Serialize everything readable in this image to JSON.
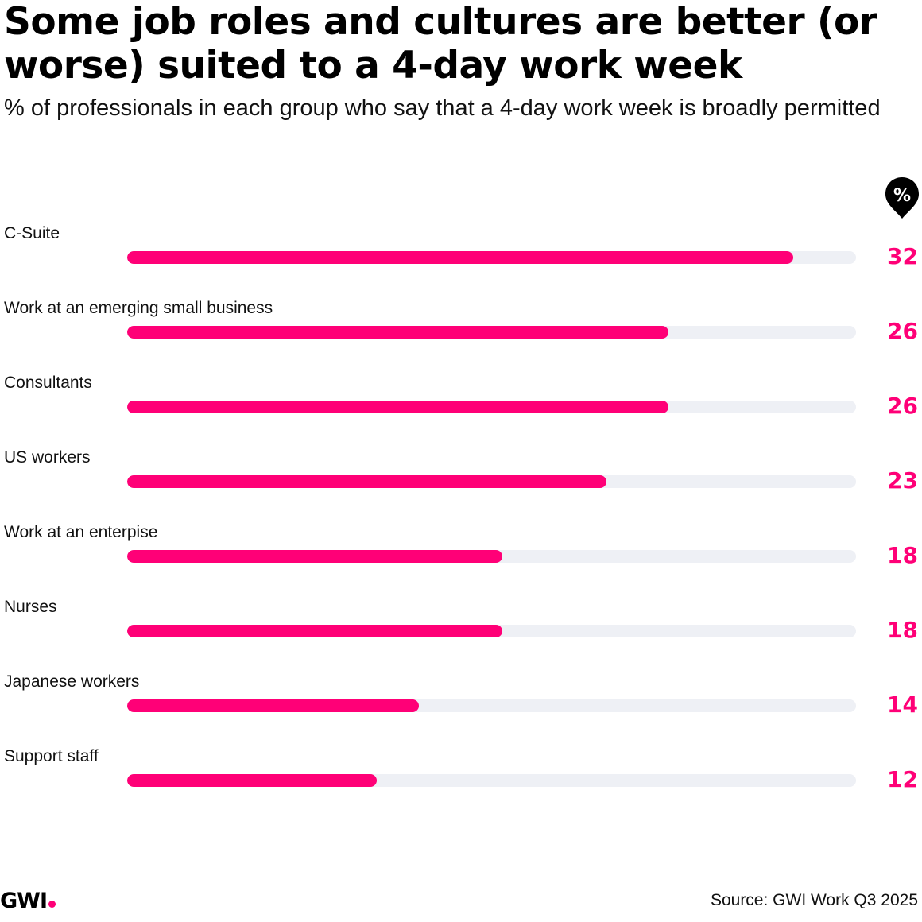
{
  "header": {
    "title": "Some job roles and cultures are better (or worse) suited to a 4-day work week",
    "subtitle": "% of professionals in each group who say that a 4-day work week is broadly permitted"
  },
  "unit_badge": {
    "label": "%",
    "icon": "percent-pin-icon"
  },
  "colors": {
    "bar": "#ff0077",
    "track": "#eef0f5",
    "value_text": "#ff0077"
  },
  "chart_data": {
    "type": "bar",
    "orientation": "horizontal",
    "categories": [
      "C-Suite",
      "Work at an emerging small business",
      "Consultants",
      "US workers",
      "Work at an enterpise",
      "Nurses",
      "Japanese workers",
      "Support staff"
    ],
    "values": [
      32,
      26,
      26,
      23,
      18,
      18,
      14,
      12
    ],
    "title": "Some job roles and cultures are better (or worse) suited to a 4-day work week",
    "subtitle": "% of professionals in each group who say that a 4-day work week is broadly permitted",
    "xlim": [
      0,
      35
    ],
    "data_labels": true,
    "grid": false
  },
  "footer": {
    "logo": "GWI",
    "source": "Source: GWI Work Q3 2025"
  }
}
